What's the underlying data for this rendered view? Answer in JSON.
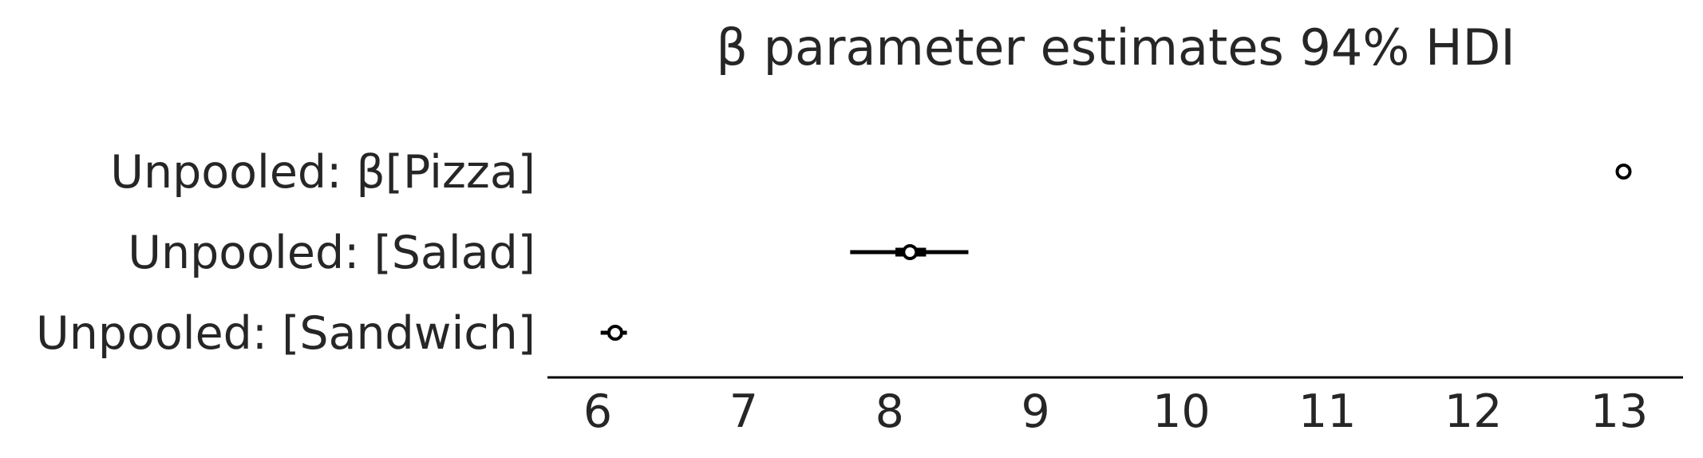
{
  "chart_data": {
    "type": "forest",
    "title": "β parameter estimates 94% HDI",
    "xlabel": "",
    "ylabel": "",
    "xlim": [
      5.65,
      13.45
    ],
    "xticks": [
      6,
      7,
      8,
      9,
      10,
      11,
      12,
      13
    ],
    "grid": false,
    "legend": "none",
    "colors": {
      "mark": "#000000",
      "text": "#262626",
      "marker_fill": "#ffffff"
    },
    "series": [
      {
        "label": "Unpooled: β[Pizza]",
        "mean": 13.03,
        "hdi94": [
          13.0,
          13.06
        ],
        "iqr": [
          13.02,
          13.04
        ]
      },
      {
        "label": "Unpooled: [Salad]",
        "mean": 8.14,
        "hdi94": [
          7.73,
          8.54
        ],
        "iqr": [
          8.04,
          8.25
        ]
      },
      {
        "label": "Unpooled: [Sandwich]",
        "mean": 6.12,
        "hdi94": [
          6.02,
          6.2
        ],
        "iqr": [
          6.07,
          6.17
        ]
      }
    ]
  }
}
